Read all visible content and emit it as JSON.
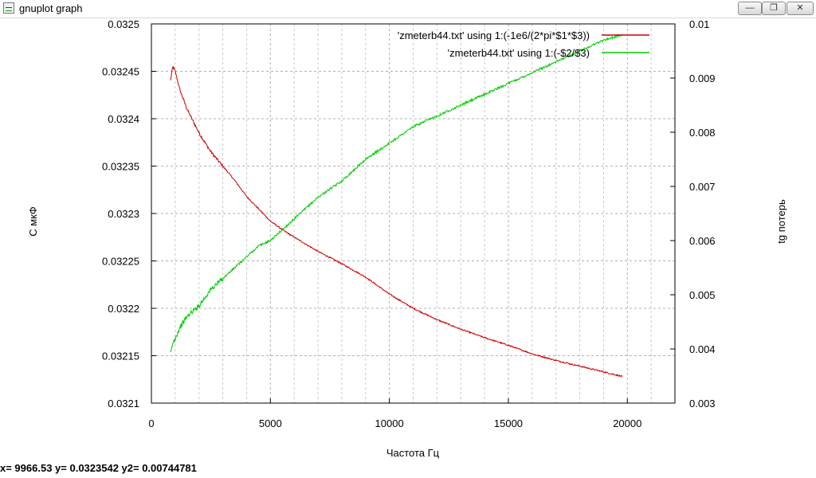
{
  "window": {
    "title": "gnuplot graph",
    "min_glyph": "—",
    "max_glyph": "❐",
    "close_glyph": "✕"
  },
  "status_bar": {
    "text": "x= 9966.53 y= 0.0323542 y2= 0.00744781"
  },
  "chart_data": {
    "type": "line",
    "title": "",
    "xlabel": "Частота Гц",
    "ylabel": "С мкФ",
    "y2label": "tg потерь",
    "xlim": [
      0,
      22000
    ],
    "ylim": [
      0.0321,
      0.0325
    ],
    "y2lim": [
      0.003,
      0.01
    ],
    "x_ticks": [
      0,
      5000,
      10000,
      15000,
      20000
    ],
    "x_tick_labels": [
      "0",
      "5000",
      "10000",
      "15000",
      "20000"
    ],
    "y_ticks": [
      0.0321,
      0.03215,
      0.0322,
      0.03225,
      0.0323,
      0.03235,
      0.0324,
      0.03245,
      0.0325
    ],
    "y_tick_labels": [
      "0.0321",
      "0.03215",
      "0.0322",
      "0.03225",
      "0.0323",
      "0.03235",
      "0.0324",
      "0.03245",
      "0.0325"
    ],
    "y2_ticks": [
      0.003,
      0.004,
      0.005,
      0.006,
      0.007,
      0.008,
      0.009,
      0.01
    ],
    "y2_tick_labels": [
      "0.003",
      "0.004",
      "0.005",
      "0.006",
      "0.007",
      "0.008",
      "0.009",
      "0.01"
    ],
    "grid": true,
    "legend_position": "top-right",
    "series": [
      {
        "name": "'zmeterb44.txt' using 1:(-1e6/(2*pi*$1*$3))",
        "axis": "y",
        "color": "#cc0000",
        "x": [
          800,
          900,
          1000,
          1200,
          1500,
          2000,
          2500,
          3000,
          3500,
          4000,
          4500,
          5000,
          5500,
          6000,
          7000,
          8000,
          9000,
          10000,
          11000,
          12000,
          13000,
          14000,
          15000,
          16000,
          17000,
          18000,
          19000,
          19800
        ],
        "values": [
          0.03244,
          0.032455,
          0.03245,
          0.03243,
          0.03241,
          0.032385,
          0.032365,
          0.03235,
          0.032335,
          0.032318,
          0.032305,
          0.032292,
          0.032283,
          0.032275,
          0.03226,
          0.032247,
          0.032233,
          0.032215,
          0.0322,
          0.032188,
          0.032178,
          0.032169,
          0.032161,
          0.032152,
          0.032145,
          0.032139,
          0.032133,
          0.032128
        ]
      },
      {
        "name": "'zmeterb44.txt' using 1:(-$2/$3)",
        "axis": "y2",
        "color": "#00cc00",
        "x": [
          800,
          900,
          1000,
          1200,
          1500,
          2000,
          2500,
          3000,
          3500,
          4000,
          4500,
          5000,
          5500,
          6000,
          7000,
          8000,
          9000,
          10000,
          11000,
          12000,
          13000,
          14000,
          15000,
          16000,
          17000,
          18000,
          19000,
          19800
        ],
        "values": [
          0.0039,
          0.0041,
          0.0042,
          0.0044,
          0.0046,
          0.0048,
          0.0051,
          0.0053,
          0.0055,
          0.0057,
          0.0059,
          0.006,
          0.0062,
          0.0064,
          0.0068,
          0.0071,
          0.0075,
          0.0078,
          0.0081,
          0.0083,
          0.0085,
          0.0087,
          0.0089,
          0.0091,
          0.0093,
          0.0095,
          0.0097,
          0.0098
        ]
      }
    ]
  }
}
